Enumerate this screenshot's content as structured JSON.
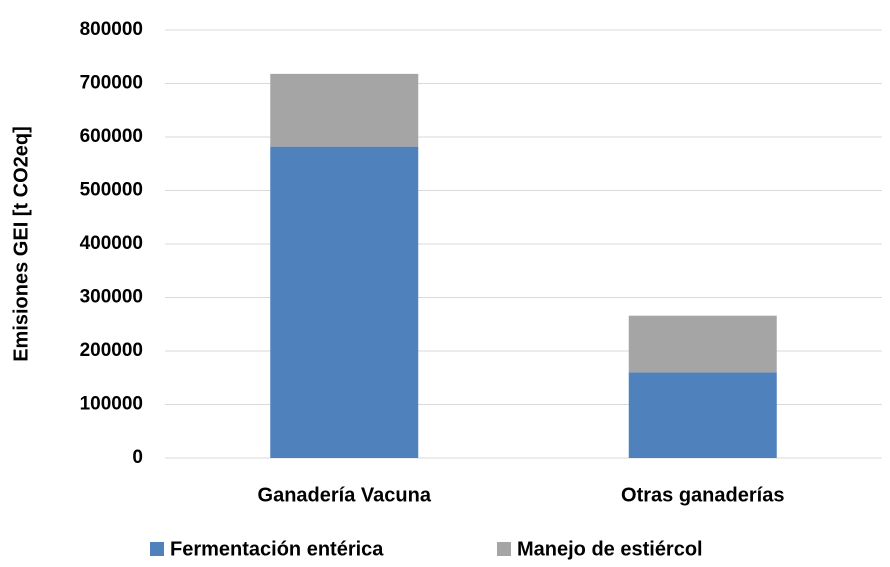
{
  "chart_data": {
    "type": "stacked_bar",
    "y_label": "Emisiones GEI [t CO2eq]",
    "categories": [
      "Ganadería Vacuna",
      "Otras ganaderías"
    ],
    "series": [
      {
        "name": "Fermentación entérica",
        "color": "#4f81bd",
        "values": [
          582000,
          160000
        ]
      },
      {
        "name": "Manejo de estiércol",
        "color": "#a5a5a5",
        "values": [
          136000,
          106000
        ]
      }
    ],
    "ylim": [
      0,
      800000
    ],
    "yticks": [
      0,
      100000,
      200000,
      300000,
      400000,
      500000,
      600000,
      700000,
      800000
    ],
    "grid": true,
    "legend": "bottom"
  }
}
